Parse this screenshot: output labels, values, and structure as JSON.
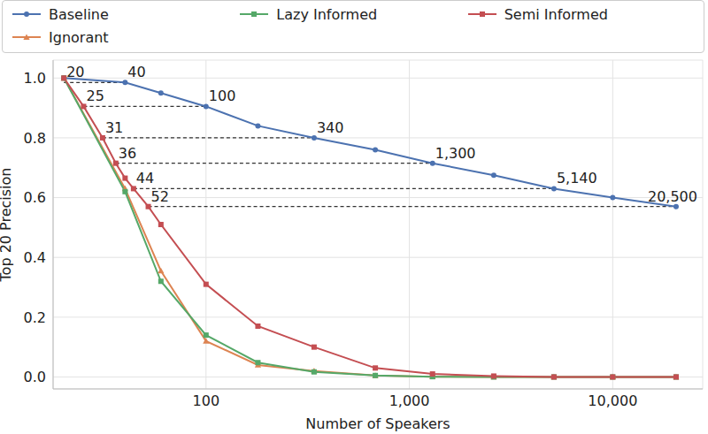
{
  "chart_data": {
    "type": "line",
    "x_label": "Number of Speakers",
    "y_label": "Top 20 Precision",
    "log": "x",
    "grid": true,
    "legend": "top",
    "xlim": [
      17.7,
      27700
    ],
    "xticks": [
      100,
      {
        "value": 1000,
        "label": "1,000"
      },
      {
        "value": 10000,
        "label": "10,000"
      }
    ],
    "ylim": [
      -0.04,
      1.06
    ],
    "yticks": [
      {
        "value": 0,
        "label": "0.0"
      },
      {
        "value": 0.2,
        "label": "0.2"
      },
      {
        "value": 0.4,
        "label": "0.4"
      },
      {
        "value": 0.6,
        "label": "0.6"
      },
      {
        "value": 0.8,
        "label": "0.8"
      },
      {
        "value": 1,
        "label": "1.0"
      }
    ],
    "series": [
      {
        "name": "Baseline",
        "color": "#4c72b0",
        "marker": "circle",
        "x": [
          20,
          40,
          60,
          100,
          180,
          340,
          680,
          1300,
          2600,
          5140,
          10000,
          20500
        ],
        "values": [
          1.0,
          0.985,
          0.95,
          0.905,
          0.84,
          0.8,
          0.76,
          0.715,
          0.675,
          0.63,
          0.6,
          0.57
        ]
      },
      {
        "name": "Ignorant",
        "color": "#dd8452",
        "marker": "triangle",
        "x": [
          20,
          40,
          60,
          100,
          180,
          340,
          680,
          1300,
          2600,
          5140,
          10000,
          20500
        ],
        "values": [
          1.0,
          0.63,
          0.355,
          0.12,
          0.04,
          0.02,
          0.005,
          0.001,
          0.0,
          0.0,
          0.0,
          0.0
        ]
      },
      {
        "name": "Lazy Informed",
        "color": "#55a868",
        "marker": "square",
        "x": [
          20,
          40,
          60,
          100,
          180,
          340,
          680,
          1300,
          2600,
          5140,
          10000,
          20500
        ],
        "values": [
          1.0,
          0.62,
          0.32,
          0.14,
          0.048,
          0.017,
          0.005,
          0.001,
          0.0,
          0.0,
          0.0,
          0.0
        ]
      },
      {
        "name": "Semi Informed",
        "color": "#c44e52",
        "marker": "square",
        "x": [
          20,
          25,
          31,
          36,
          40,
          44,
          52,
          60,
          100,
          180,
          340,
          680,
          1300,
          2600,
          5140,
          10000,
          20500
        ],
        "values": [
          1.0,
          0.905,
          0.8,
          0.715,
          0.665,
          0.63,
          0.57,
          0.51,
          0.31,
          0.17,
          0.1,
          0.03,
          0.01,
          0.003,
          0.0,
          0.0,
          0.0
        ]
      }
    ],
    "annotations": [
      {
        "x1": 20,
        "x2": 40,
        "y": 0.985,
        "labels": [
          "20",
          "40"
        ]
      },
      {
        "x1": 25,
        "x2": 100,
        "y": 0.905,
        "labels": [
          "25",
          "100"
        ]
      },
      {
        "x1": 31,
        "x2": 340,
        "y": 0.8,
        "labels": [
          "31",
          "340"
        ]
      },
      {
        "x1": 36,
        "x2": 1300,
        "y": 0.715,
        "labels": [
          "36",
          "1,300"
        ]
      },
      {
        "x1": 44,
        "x2": 5140,
        "y": 0.63,
        "labels": [
          "44",
          "5,140"
        ]
      },
      {
        "x1": 52,
        "x2": 20500,
        "y": 0.57,
        "labels": [
          "52",
          "20,500"
        ]
      }
    ]
  }
}
